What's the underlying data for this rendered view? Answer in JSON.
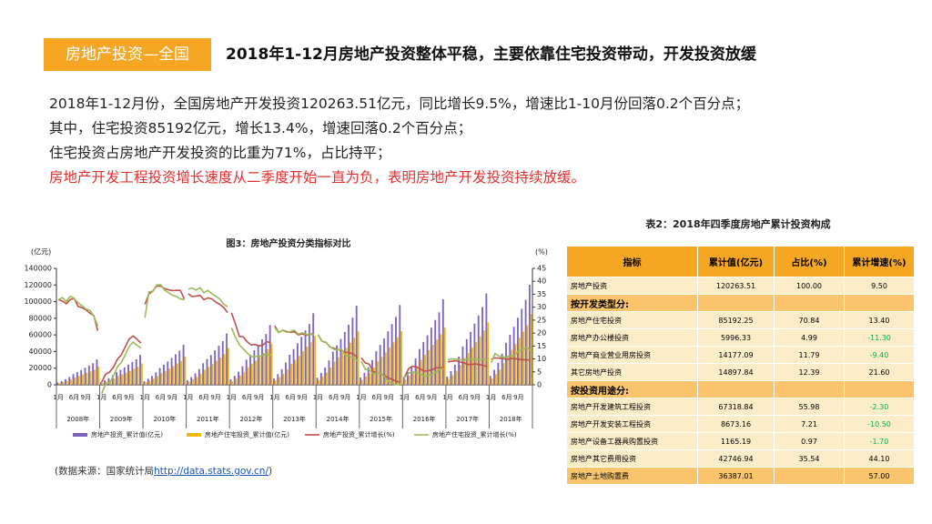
{
  "header": {
    "tag": "房地产投资—全国",
    "title": "2018年1-12月房地产投资整体平稳，主要依靠住宅投资带动，开发投资放缓"
  },
  "body": [
    {
      "text": "2018年1-12月份，全国房地产开发投资120263.51亿元，同比增长9.5%，增速比1-10月份回落0.2个百分点；",
      "color": "#222222"
    },
    {
      "text": "其中，住宅投资85192亿元，增长13.4%，增速回落0.2个百分点；",
      "color": "#222222"
    },
    {
      "text": "住宅投资占房地产开发投资的比重为71%，占比持平；",
      "color": "#222222"
    },
    {
      "text": "房地产开发工程投资增长速度从二季度开始一直为负，表明房地产开发投资持续放缓。",
      "color": "#e03030"
    }
  ],
  "chart_data": {
    "type": "bar",
    "title": "图3：房地产投资分类指标对比",
    "ylabel": "(亿元)",
    "y2label": "(%)",
    "ylim": [
      0,
      140000
    ],
    "yticks": [
      0,
      20000,
      40000,
      60000,
      80000,
      100000,
      120000,
      140000
    ],
    "y2lim": [
      0,
      45
    ],
    "y2ticks": [
      0,
      5,
      10,
      15,
      20,
      25,
      30,
      35,
      40,
      45
    ],
    "years": [
      "2008年",
      "2009年",
      "2010年",
      "2011年",
      "2012年",
      "2013年",
      "2014年",
      "2015年",
      "2016年",
      "2017年",
      "2018年"
    ],
    "categories": [
      "1月",
      null,
      null,
      null,
      "6月",
      null,
      null,
      "9月",
      null,
      null,
      null,
      "1月",
      null,
      null,
      null,
      "6月",
      null,
      null,
      "9月",
      null,
      null,
      null,
      "1月",
      null,
      null,
      null,
      "6月",
      null,
      null,
      "9月",
      null,
      null,
      null,
      "1月",
      null,
      null,
      null,
      "6月",
      null,
      null,
      "9月",
      null,
      null,
      null,
      "1月",
      null,
      null,
      null,
      "6月",
      null,
      null,
      "9月",
      null,
      null,
      null,
      "1月",
      null,
      null,
      null,
      "6月",
      null,
      null,
      "9月",
      null,
      null,
      null,
      "1月",
      null,
      null,
      null,
      "6月",
      null,
      null,
      "9月",
      null,
      null,
      null,
      "1月",
      null,
      null,
      null,
      "6月",
      null,
      null,
      "9月",
      null,
      null,
      null,
      "1月",
      null,
      null,
      null,
      "6月",
      null,
      null,
      "9月",
      null,
      null,
      null,
      "1月",
      null,
      null,
      null,
      "6月",
      null,
      null,
      "9月",
      null,
      null,
      null,
      "1月",
      null,
      null,
      null,
      "6月",
      null,
      null,
      "9月",
      null,
      null,
      null
    ],
    "series": [
      {
        "name": "房地产投资_累计值(亿元)",
        "type": "bar",
        "color": "#7e63c2",
        "values": [
          2750,
          4590,
          6730,
          9490,
          12850,
          15300,
          17750,
          20500,
          23260,
          26010,
          30600,
          3260,
          5430,
          7960,
          11220,
          15200,
          18100,
          21000,
          24250,
          27510,
          30770,
          36200,
          4350,
          7250,
          10630,
          14970,
          20290,
          24150,
          28010,
          32360,
          36710,
          41060,
          48300,
          5550,
          9260,
          13570,
          19130,
          25910,
          30850,
          35790,
          41340,
          46890,
          52450,
          61700,
          6460,
          10770,
          15800,
          22260,
          30160,
          35900,
          41640,
          48110,
          54570,
          61030,
          71800,
          7740,
          12900,
          18920,
          26660,
          36120,
          43000,
          49880,
          57620,
          65360,
          73100,
          86000,
          8550,
          14250,
          20900,
          29450,
          39900,
          47500,
          55100,
          63650,
          72200,
          80750,
          95000,
          8640,
          14400,
          21120,
          29760,
          40320,
          48000,
          55680,
          64320,
          72960,
          81600,
          96000,
          9230,
          15390,
          22570,
          31810,
          43090,
          51300,
          59510,
          68740,
          77980,
          87210,
          102600,
          9880,
          16470,
          24160,
          34040,
          46120,
          54900,
          63680,
          73570,
          83450,
          93330,
          109800,
          10820,
          18040,
          26460,
          37280,
          50510,
          60130,
          69750,
          80580,
          91400,
          102220,
          120264
        ]
      },
      {
        "name": "房地产住宅投资_累计值(亿元)",
        "type": "bar",
        "color": "#f2b705",
        "values": [
          1930,
          3210,
          4710,
          6640,
          9000,
          10710,
          12430,
          14350,
          16280,
          18210,
          22080,
          2280,
          3800,
          5570,
          7850,
          10640,
          12670,
          14700,
          16980,
          19260,
          21540,
          25620,
          3040,
          5080,
          7440,
          10480,
          14200,
          16910,
          19610,
          22650,
          25700,
          28740,
          34040,
          3890,
          6480,
          9500,
          13390,
          18140,
          21600,
          25050,
          28940,
          32820,
          36720,
          44310,
          4520,
          7540,
          11060,
          15580,
          21110,
          25130,
          29150,
          33680,
          38200,
          42720,
          49370,
          5420,
          9030,
          13240,
          18660,
          25280,
          30100,
          34920,
          40330,
          45750,
          51170,
          58950,
          5990,
          9980,
          14630,
          20620,
          27930,
          33250,
          38570,
          44560,
          50540,
          56530,
          64350,
          6050,
          10080,
          14780,
          20830,
          28220,
          33600,
          38980,
          45020,
          51070,
          57120,
          64600,
          6460,
          10770,
          15800,
          22270,
          30160,
          35910,
          41660,
          48120,
          54590,
          61050,
          68700,
          6920,
          11530,
          16910,
          23830,
          32280,
          38430,
          44580,
          51500,
          58420,
          65330,
          75150,
          7570,
          12630,
          18520,
          26100,
          35360,
          42090,
          48830,
          56410,
          63980,
          71550,
          85192
        ]
      },
      {
        "name": "房地产投资_累计增长(%)",
        "type": "line",
        "axis": "y2",
        "color": "#c0504d",
        "values": [
          32.9,
          32.4,
          31.3,
          32.9,
          33.5,
          30.3,
          29.8,
          29.0,
          27.7,
          26.8,
          20.9,
          1.0,
          4.1,
          4.9,
          6.8,
          9.9,
          11.6,
          14.7,
          17.7,
          18.9,
          17.6,
          16.1,
          31.1,
          35.1,
          36.2,
          38.2,
          38.1,
          37.2,
          36.7,
          36.4,
          36.5,
          36.5,
          33.2,
          35.2,
          34.1,
          34.3,
          34.6,
          32.9,
          33.6,
          33.2,
          32.0,
          31.1,
          29.9,
          27.9,
          27.8,
          23.5,
          18.7,
          18.5,
          16.6,
          15.4,
          15.6,
          15.0,
          15.4,
          16.7,
          16.2,
          22.8,
          20.2,
          21.1,
          20.6,
          20.3,
          20.5,
          19.3,
          19.7,
          19.2,
          19.5,
          19.8,
          19.3,
          16.8,
          16.4,
          14.7,
          14.1,
          13.7,
          13.2,
          12.5,
          12.4,
          11.9,
          10.5,
          10.4,
          8.5,
          8.0,
          5.1,
          4.6,
          4.3,
          3.5,
          2.6,
          2.0,
          1.3,
          1.0,
          3.0,
          6.2,
          7.2,
          7.0,
          6.1,
          5.3,
          5.4,
          5.8,
          6.6,
          6.5,
          6.9,
          8.9,
          9.1,
          9.3,
          8.8,
          8.5,
          7.9,
          7.9,
          8.1,
          7.8,
          7.5,
          7.0,
          9.9,
          10.4,
          10.3,
          10.2,
          9.7,
          10.2,
          10.1,
          9.9,
          9.7,
          9.7,
          9.5
        ]
      },
      {
        "name": "房地产住宅投资_累计增长(%)",
        "type": "line",
        "axis": "y2",
        "color": "#9bbb59",
        "values": [
          32.9,
          33.7,
          32.2,
          34.2,
          33.4,
          31.7,
          30.6,
          29.3,
          28.8,
          26.5,
          22.7,
          -3.4,
          0.2,
          0.8,
          3.4,
          7.0,
          8.6,
          11.6,
          14.8,
          16.5,
          15.3,
          14.2,
          25.9,
          35.9,
          36.1,
          38.6,
          38.7,
          36.6,
          35.6,
          34.6,
          34.2,
          33.2,
          32.9,
          37.0,
          37.4,
          36.6,
          37.5,
          35.6,
          36.5,
          35.2,
          34.2,
          33.2,
          31.2,
          30.2,
          22.0,
          18.3,
          15.5,
          13.9,
          12.3,
          10.9,
          10.9,
          11.0,
          11.4,
          11.9,
          11.4,
          22.1,
          20.2,
          21.1,
          20.3,
          20.6,
          21.1,
          19.6,
          20.1,
          19.5,
          19.4,
          19.4,
          19.4,
          16.8,
          16.5,
          14.8,
          13.7,
          13.6,
          13.7,
          11.3,
          11.0,
          10.3,
          9.2,
          9.1,
          5.9,
          6.0,
          4.2,
          4.6,
          4.3,
          3.0,
          1.1,
          0.5,
          0.0,
          0.4,
          2.9,
          4.5,
          5.0,
          4.7,
          4.2,
          3.4,
          3.6,
          4.0,
          4.8,
          6.1,
          6.4,
          9.7,
          10.0,
          9.9,
          9.7,
          9.3,
          10.1,
          10.0,
          9.9,
          9.7,
          9.9,
          9.4,
          8.6,
          12.1,
          11.1,
          10.7,
          10.8,
          11.1,
          11.4,
          13.2,
          13.7,
          14.3,
          13.4
        ]
      }
    ]
  },
  "source": {
    "prefix": "(数据来源：国家统计局",
    "link": "http://data.stats.gov.cn/",
    "suffix": ")"
  },
  "table": {
    "title": "表2：2018年四季度房地产累计投资构成",
    "negative_color": "#00b050",
    "header": [
      "指标",
      "累计值(亿元)",
      "占比(%)",
      "累计增速(%)"
    ],
    "rows": [
      [
        "房地产投资",
        "120263.51",
        "100.00",
        "9.50"
      ],
      [
        "按开发类型分:"
      ],
      [
        "房地产住宅投资",
        "85192.25",
        "70.84",
        "13.40"
      ],
      [
        "房地产办公楼投资",
        "5996.33",
        "4.99",
        "-11.30"
      ],
      [
        "房地产商业营业用房投资",
        "14177.09",
        "11.79",
        "-9.40"
      ],
      [
        "其它房地产投资",
        "14897.84",
        "12.39",
        "21.60"
      ],
      [
        "按投资用途分:"
      ],
      [
        "房地产开发建筑工程投资",
        "67318.84",
        "55.98",
        "-2.30"
      ],
      [
        "房地产开发安装工程投资",
        "8673.16",
        "7.21",
        "-10.50"
      ],
      [
        "房地产设备工器具购置投资",
        "1165.19",
        "0.97",
        "-1.70"
      ],
      [
        "房地产其它费用投资",
        "42746.94",
        "35.54",
        "44.10"
      ],
      [
        "房地产土地购置费",
        "36387.01",
        null,
        "57.00"
      ]
    ]
  }
}
